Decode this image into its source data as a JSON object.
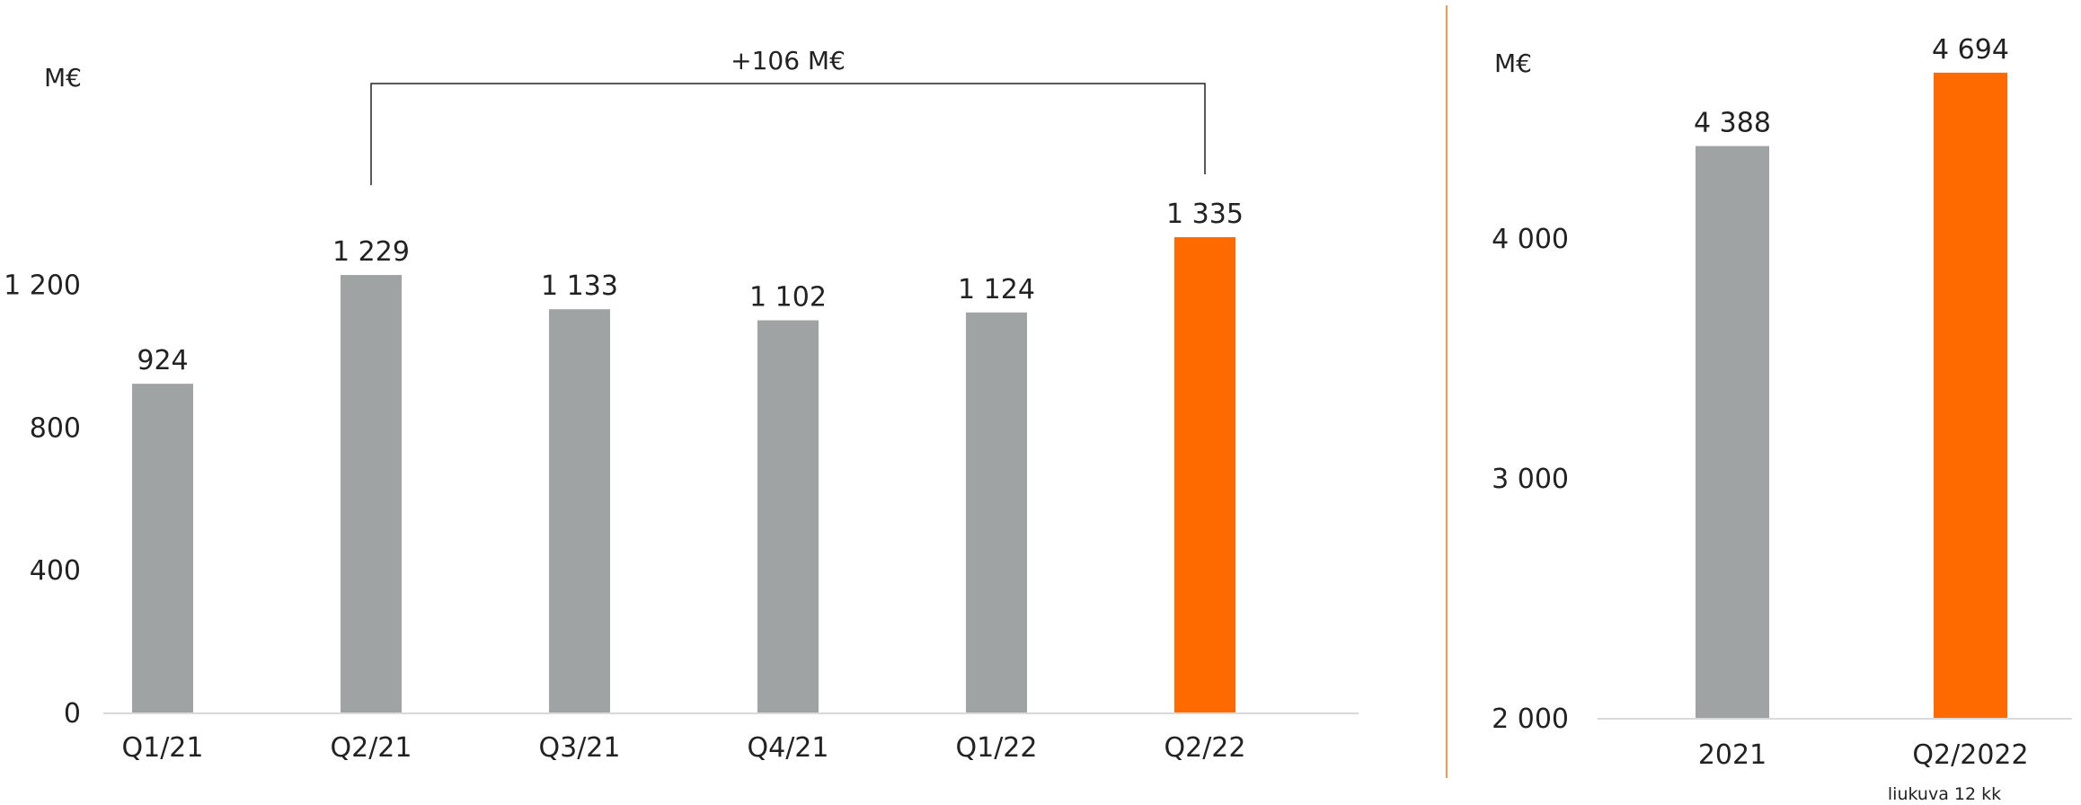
{
  "colors": {
    "gray": "#a0a3a3",
    "orange": "#ff6a00",
    "divider": "#f39a4c",
    "text": "#222222",
    "axis": "#d9d9d9"
  },
  "chart_data": [
    {
      "type": "bar",
      "unit_label": "M€",
      "categories": [
        "Q1/21",
        "Q2/21",
        "Q3/21",
        "Q4/21",
        "Q1/22",
        "Q2/22"
      ],
      "values": [
        924,
        1229,
        1133,
        1102,
        1124,
        1335
      ],
      "value_labels": [
        "924",
        "1 229",
        "1 133",
        "1 102",
        "1 124",
        "1 335"
      ],
      "bar_colors": [
        "gray",
        "gray",
        "gray",
        "gray",
        "gray",
        "orange"
      ],
      "yticks": [
        0,
        400,
        800,
        1200
      ],
      "ytick_labels": [
        "0",
        "400",
        "800",
        "1 200"
      ],
      "ylim": [
        0,
        2000
      ],
      "annotation": {
        "text": "+106 M€",
        "from_category": "Q2/21",
        "to_category": "Q2/22"
      }
    },
    {
      "type": "bar",
      "unit_label": "M€",
      "categories": [
        "2021",
        "Q2/2022"
      ],
      "values": [
        4388,
        4694
      ],
      "value_labels": [
        "4 388",
        "4 694"
      ],
      "bar_colors": [
        "gray",
        "orange"
      ],
      "yticks": [
        2000,
        3000,
        4000
      ],
      "ytick_labels": [
        "2 000",
        "3 000",
        "4 000"
      ],
      "ylim": [
        2000,
        4997
      ],
      "footnote": "liukuva 12 kk"
    }
  ]
}
